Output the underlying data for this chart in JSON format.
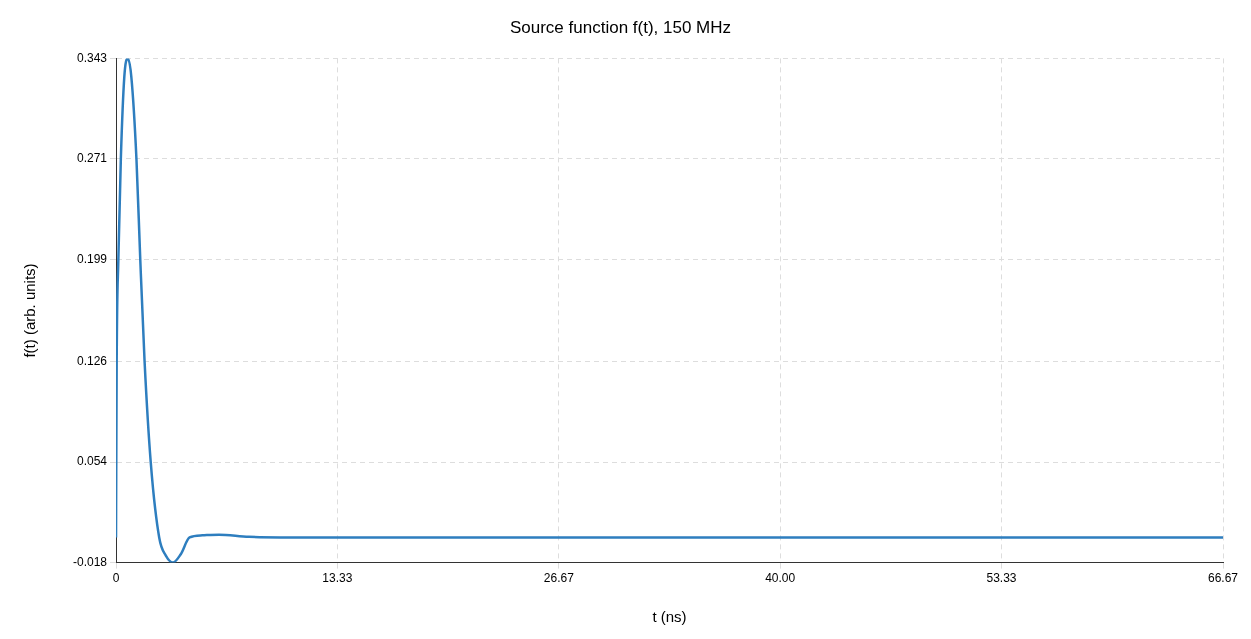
{
  "chart_data": {
    "type": "line",
    "title": "Source function f(t), 150 MHz",
    "xlabel": "t (ns)",
    "ylabel": "f(t) (arb. units)",
    "series": [
      {
        "color": "#2e7ebf",
        "x": [
          0,
          0.04,
          0.14,
          0.29,
          0.5,
          0.71,
          0.92,
          1.23,
          1.46,
          1.72,
          2.09,
          2.6,
          3.0,
          3.43,
          3.9,
          4.43,
          5.2,
          6.2,
          8,
          12,
          20,
          40,
          66.67
        ],
        "values": [
          0,
          0.126,
          0.199,
          0.271,
          0.33,
          0.343,
          0.33,
          0.271,
          0.199,
          0.126,
          0.054,
          0,
          -0.013,
          -0.018,
          -0.012,
          0,
          0.0015,
          0.002,
          0.0005,
          0,
          0,
          0,
          0
        ]
      }
    ],
    "xlim": [
      0,
      66.67
    ],
    "xticks": [
      0,
      13.33,
      26.67,
      {
        "value": 40,
        "label": "40.00"
      },
      53.33,
      66.67
    ],
    "ylim": [
      -0.018,
      0.343
    ],
    "yticks": [
      -0.018,
      0.054,
      0.126,
      0.199,
      0.271,
      0.343
    ],
    "grid": true,
    "legend": false,
    "marker": "none",
    "line_style": "solid"
  }
}
